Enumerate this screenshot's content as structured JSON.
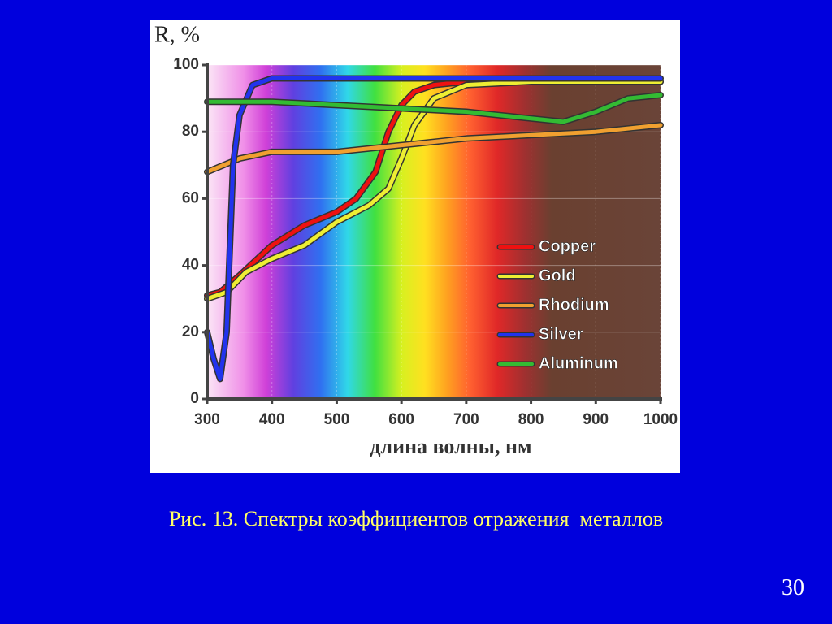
{
  "chart_data": {
    "type": "line",
    "y_label": "R, %",
    "x_label": "длина волны, нм",
    "xlim": [
      300,
      1000
    ],
    "ylim": [
      0,
      100
    ],
    "xticks": [
      300,
      400,
      500,
      600,
      700,
      800,
      900,
      1000
    ],
    "yticks": [
      0,
      20,
      40,
      60,
      80,
      100
    ],
    "grid": true,
    "legend_position": "lower right",
    "series": [
      {
        "name": "Copper",
        "color": "#ee1111",
        "x": [
          300,
          320,
          350,
          400,
          450,
          500,
          530,
          560,
          580,
          600,
          620,
          650,
          700,
          800,
          900,
          1000
        ],
        "values": [
          31,
          32,
          37,
          46,
          52,
          56,
          60,
          68,
          80,
          88,
          92,
          94,
          95,
          95,
          95,
          95
        ]
      },
      {
        "name": "Gold",
        "color": "#eeee33",
        "x": [
          300,
          330,
          360,
          400,
          450,
          500,
          550,
          580,
          600,
          620,
          650,
          700,
          800,
          900,
          1000
        ],
        "values": [
          30,
          32,
          38,
          42,
          46,
          53,
          58,
          63,
          72,
          82,
          90,
          94,
          95,
          95,
          95
        ]
      },
      {
        "name": "Rhodium",
        "color": "#f0a030",
        "x": [
          300,
          350,
          400,
          450,
          500,
          600,
          700,
          800,
          900,
          1000
        ],
        "values": [
          68,
          72,
          74,
          74,
          74,
          76,
          78,
          79,
          80,
          82
        ]
      },
      {
        "name": "Silver",
        "color": "#2233ee",
        "x": [
          300,
          310,
          320,
          330,
          340,
          350,
          370,
          400,
          500,
          600,
          700,
          800,
          900,
          1000
        ],
        "values": [
          20,
          12,
          6,
          20,
          70,
          85,
          94,
          96,
          96,
          96,
          96,
          96,
          96,
          96
        ]
      },
      {
        "name": "Aluminum",
        "color": "#33bb33",
        "x": [
          300,
          400,
          500,
          600,
          700,
          800,
          850,
          900,
          950,
          1000
        ],
        "values": [
          89,
          89,
          88,
          87,
          86,
          84,
          83,
          86,
          90,
          91
        ]
      }
    ]
  },
  "caption": "Рис. 13. Спектры коэффициентов отражения  металлов",
  "slide_number": "30"
}
